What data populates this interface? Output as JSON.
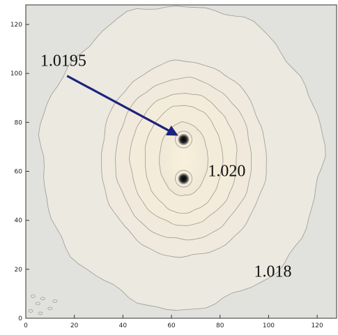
{
  "chart_data": {
    "type": "contour",
    "title": "",
    "xlabel": "",
    "ylabel": "",
    "xlim": [
      0,
      128
    ],
    "ylim": [
      0,
      128
    ],
    "x_ticks": [
      0,
      20,
      40,
      60,
      80,
      100,
      120
    ],
    "y_ticks": [
      0,
      20,
      40,
      60,
      80,
      100,
      120
    ],
    "grid": false,
    "contour_levels": [
      {
        "cx": 64,
        "cy": 66,
        "rx": 58,
        "ry": 62
      },
      {
        "cx": 65,
        "cy": 65,
        "rx": 34,
        "ry": 40
      },
      {
        "cx": 65,
        "cy": 65,
        "rx": 28,
        "ry": 33
      },
      {
        "cx": 65,
        "cy": 65,
        "rx": 22,
        "ry": 27
      },
      {
        "cx": 65,
        "cy": 65,
        "rx": 16,
        "ry": 22
      },
      {
        "cx": 65,
        "cy": 65,
        "rx": 10,
        "ry": 15
      }
    ],
    "sources": [
      {
        "x": 65,
        "y": 73
      },
      {
        "x": 65,
        "y": 57
      }
    ],
    "annotations": [
      {
        "text": "1.0195",
        "x": 6,
        "y": 103,
        "size": 24,
        "arrow_to": [
          62,
          75
        ]
      },
      {
        "text": "1.020",
        "x": 75,
        "y": 58,
        "size": 24
      },
      {
        "text": "1.018",
        "x": 94,
        "y": 17,
        "size": 24
      }
    ],
    "colors": {
      "background": "#e1e2dd",
      "outer_fill": "#ebe9e0",
      "inner_fill": "#f5ecda",
      "contour_line": "#9a9a92",
      "arrow": "#1c237f"
    }
  }
}
